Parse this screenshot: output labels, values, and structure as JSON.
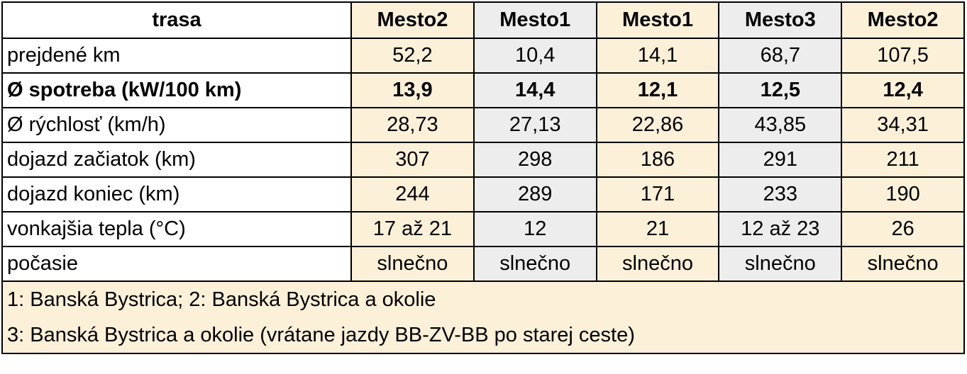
{
  "table": {
    "header": [
      "trasa",
      "Mesto2",
      "Mesto1",
      "Mesto1",
      "Mesto3",
      "Mesto2"
    ],
    "rows": [
      [
        "prejdené km",
        "52,2",
        "10,4",
        "14,1",
        "68,7",
        "107,5"
      ],
      [
        "Ø spotreba (kW/100 km)",
        "13,9",
        "14,4",
        "12,1",
        "12,5",
        "12,4"
      ],
      [
        "Ø rýchlosť (km/h)",
        "28,73",
        "27,13",
        "22,86",
        "43,85",
        "34,31"
      ],
      [
        "dojazd začiatok (km)",
        "307",
        "298",
        "186",
        "291",
        "211"
      ],
      [
        "dojazd koniec (km)",
        "244",
        "289",
        "171",
        "233",
        "190"
      ],
      [
        "vonkajšia tepla (°C)",
        "17 až 21",
        "12",
        "21",
        "12 až 23",
        "26"
      ],
      [
        "počasie",
        "slnečno",
        "slnečno",
        "slnečno",
        "slnečno",
        "slnečno"
      ]
    ],
    "footnotes": [
      "1: Banská Bystrica; 2: Banská Bystrica a okolie",
      "3: Banská Bystrica a okolie (vrátane jazdy BB-ZV-BB po starej ceste)"
    ]
  }
}
